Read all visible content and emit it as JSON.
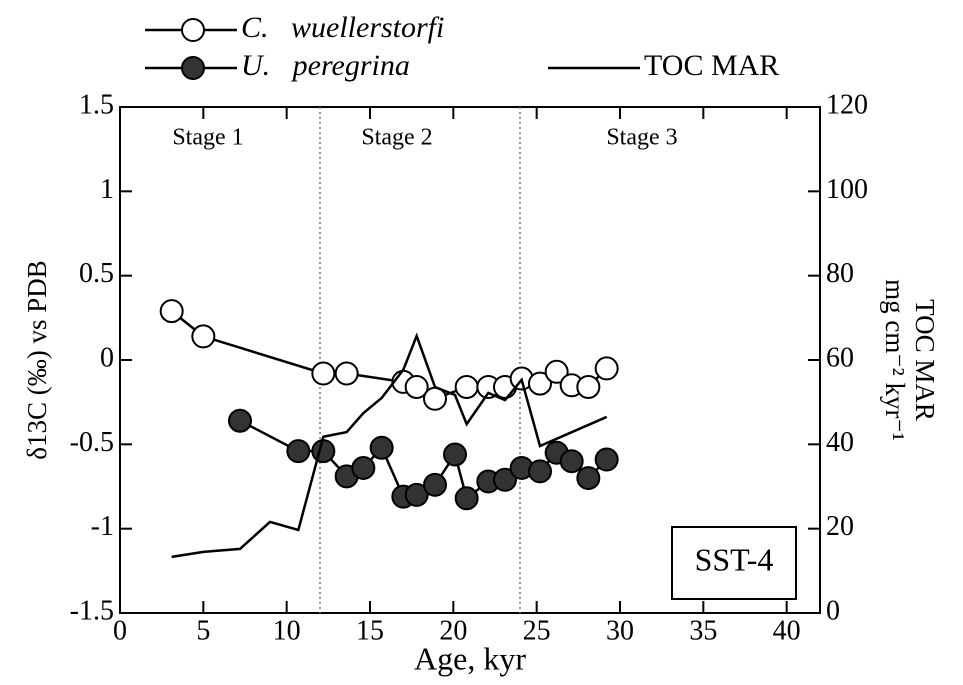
{
  "chart_data": {
    "type": "line",
    "x_label": "Age,  kyr",
    "y_label": "δ13C (‰) vs PDB",
    "y2_label": [
      "TOC MAR",
      "mg cm⁻² kyr⁻¹"
    ],
    "box_label": "SST-4",
    "stages": [
      {
        "label": "Stage 1"
      },
      {
        "label": "Stage 2"
      },
      {
        "label": "Stage 3"
      }
    ],
    "stage_boundaries": [
      12,
      24
    ],
    "xlim": [
      0,
      42
    ],
    "xticks": [
      0,
      5,
      10,
      15,
      20,
      25,
      30,
      35,
      40
    ],
    "ylim": [
      -1.5,
      1.5
    ],
    "yticks": [
      -1.5,
      -1,
      -0.5,
      0,
      0.5,
      1,
      1.5
    ],
    "y2lim": [
      0,
      120
    ],
    "y2ticks": [
      0,
      20,
      40,
      60,
      80,
      100,
      120
    ],
    "series": [
      {
        "name": "C.   wuellerstorfi",
        "color": "#000000",
        "marker": "open",
        "x": [
          3.1,
          5.0,
          12.2,
          13.6,
          17.0,
          17.8,
          18.9,
          20.8,
          22.1,
          23.1,
          24.1,
          25.2,
          26.2,
          27.1,
          28.1,
          29.2
        ],
        "values": [
          0.29,
          0.14,
          -0.08,
          -0.08,
          -0.13,
          -0.16,
          -0.23,
          -0.16,
          -0.16,
          -0.16,
          -0.11,
          -0.14,
          -0.07,
          -0.15,
          -0.16,
          -0.05
        ]
      },
      {
        "name": "U.   peregrina",
        "color": "#000000",
        "marker": "filled",
        "x": [
          7.2,
          10.7,
          12.2,
          13.6,
          14.6,
          15.7,
          17.0,
          17.8,
          18.9,
          20.1,
          20.8,
          22.1,
          23.1,
          24.1,
          25.2,
          26.2,
          27.1,
          28.1,
          29.2
        ],
        "values": [
          -0.36,
          -0.54,
          -0.54,
          -0.69,
          -0.64,
          -0.52,
          -0.81,
          -0.8,
          -0.74,
          -0.56,
          -0.82,
          -0.72,
          -0.71,
          -0.64,
          -0.66,
          -0.55,
          -0.6,
          -0.7,
          -0.59
        ]
      },
      {
        "name": "TOC MAR",
        "color": "#000000",
        "marker": "none",
        "axis": "y2",
        "x": [
          3.1,
          5.0,
          7.2,
          9.0,
          10.7,
          12.2,
          13.6,
          14.6,
          15.7,
          17.0,
          17.8,
          18.9,
          20.1,
          20.8,
          22.1,
          23.1,
          24.1,
          25.2,
          29.2
        ],
        "values": [
          13.3,
          14.5,
          15.2,
          21.6,
          19.7,
          41.8,
          42.9,
          47.4,
          51.0,
          57.7,
          65.7,
          53.6,
          51.7,
          44.8,
          52.2,
          50.5,
          55.3,
          39.6,
          46.5
        ]
      }
    ]
  }
}
